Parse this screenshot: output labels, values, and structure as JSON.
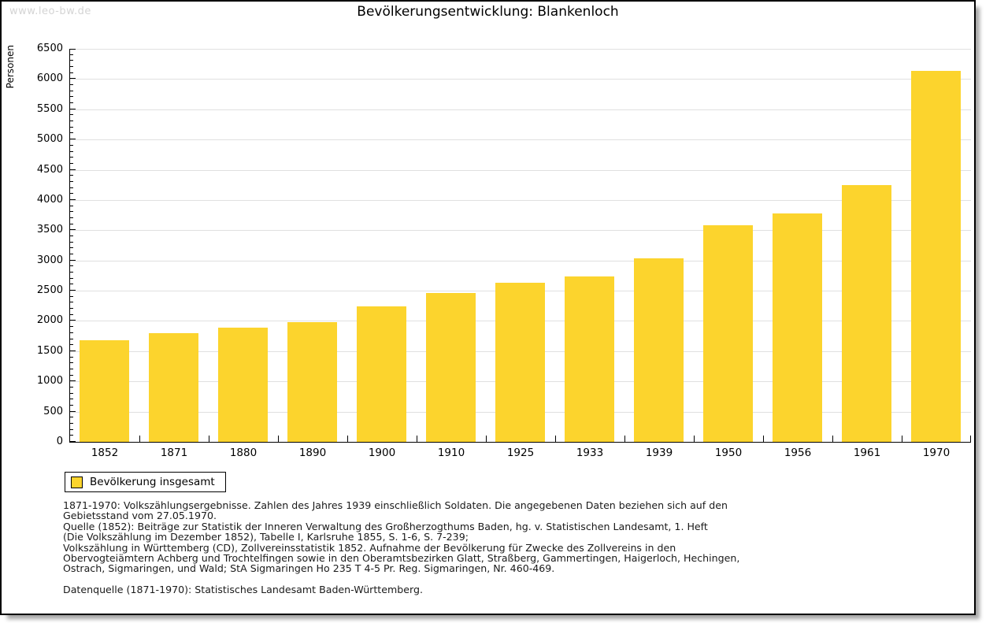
{
  "watermark": "www.leo-bw.de",
  "title": "Bevölkerungsentwicklung: Blankenloch",
  "chart_data": {
    "type": "bar",
    "title": "Bevölkerungsentwicklung: Blankenloch",
    "xlabel": "",
    "ylabel": "Personen",
    "categories": [
      "1852",
      "1871",
      "1880",
      "1890",
      "1900",
      "1910",
      "1925",
      "1933",
      "1939",
      "1950",
      "1956",
      "1961",
      "1970"
    ],
    "values": [
      1680,
      1795,
      1885,
      1975,
      2235,
      2465,
      2635,
      2740,
      3040,
      3585,
      3775,
      4245,
      6135
    ],
    "ylim": [
      0,
      6500
    ],
    "ytick_step": 500,
    "y_minor_tick_step": 100,
    "grid": "horizontal-major",
    "legend_position": "bottom-left",
    "bar_color": "#FCD42D",
    "gridline_color": "#e0e0e0",
    "axis_color": "#000000"
  },
  "legend": {
    "label": "Bevölkerung insgesamt",
    "swatch_color": "#FCD42D"
  },
  "footnote": {
    "lines": [
      "1871-1970: Volkszählungsergebnisse. Zahlen des Jahres 1939 einschließlich Soldaten. Die angegebenen Daten beziehen sich auf den",
      "Gebietsstand vom 27.05.1970.",
      "Quelle (1852): Beiträge zur Statistik der Inneren Verwaltung des Großherzogthums Baden, hg. v. Statistischen Landesamt, 1. Heft",
      "(Die Volkszählung im Dezember 1852), Tabelle I, Karlsruhe 1855, S. 1-6, S. 7-239;",
      "Volkszählung in Württemberg (CD), Zollvereinsstatistik 1852. Aufnahme der Bevölkerung für Zwecke des Zollvereins in den",
      "Obervogteiämtern Achberg und Trochtelfingen sowie in den Oberamtsbezirken Glatt, Straßberg, Gammertingen, Haigerloch, Hechingen,",
      "Ostrach, Sigmaringen, und Wald; StA Sigmaringen Ho 235 T 4-5 Pr. Reg. Sigmaringen, Nr. 460-469."
    ]
  },
  "datasource": "Datenquelle (1871-1970): Statistisches Landesamt Baden-Württemberg."
}
